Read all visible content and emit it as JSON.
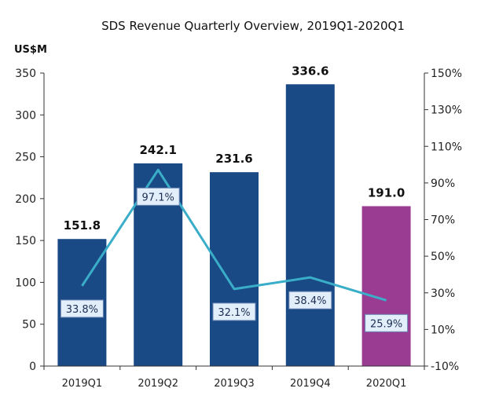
{
  "colors": {
    "bar": "#1a4a85",
    "bar_highlight": "#9a3d92",
    "line": "#3aaec9",
    "label_box_fill": "#e3eefb",
    "label_box_stroke": "#6b87b5",
    "axis": "#333333"
  },
  "chart_data": {
    "type": "bar",
    "title": "SDS Revenue Quarterly Overview, 2019Q1-2020Q1",
    "ylabel": "US$M",
    "categories": [
      "2019Q1",
      "2019Q2",
      "2019Q3",
      "2019Q4",
      "2020Q1"
    ],
    "series": [
      {
        "type": "bar",
        "values": [
          151.8,
          242.1,
          231.6,
          336.6,
          191.0
        ],
        "value_labels": [
          "151.8",
          "242.1",
          "231.6",
          "336.6",
          "191.0"
        ],
        "highlight_index": 4
      },
      {
        "type": "line",
        "axis": "right",
        "values": [
          33.8,
          97.1,
          32.1,
          38.4,
          25.9
        ],
        "value_labels": [
          "33.8%",
          "97.1%",
          "32.1%",
          "38.4%",
          "25.9%"
        ]
      }
    ],
    "y_left": {
      "min": 0,
      "max": 350,
      "ticks": [
        "0",
        "50",
        "100",
        "150",
        "200",
        "250",
        "300",
        "350"
      ]
    },
    "y_right": {
      "min": -10,
      "max": 150,
      "ticks": [
        "-10%",
        "10%",
        "30%",
        "50%",
        "70%",
        "90%",
        "110%",
        "130%",
        "150%"
      ]
    },
    "grid": false,
    "legend": "none"
  }
}
